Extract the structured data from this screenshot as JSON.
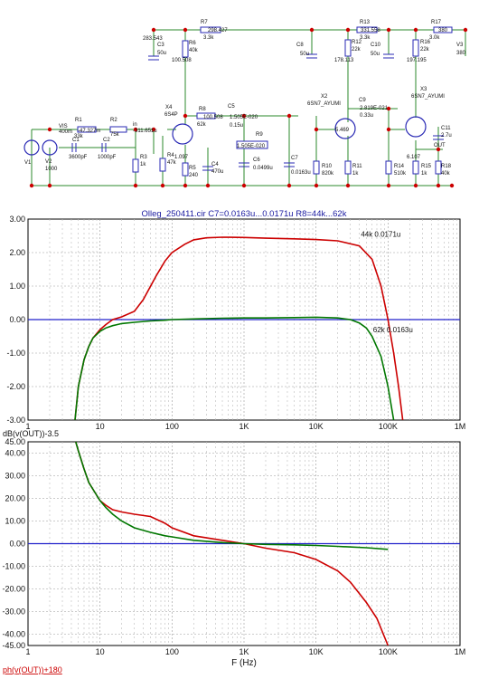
{
  "schematic": {
    "labels": [
      {
        "id": "r7",
        "t": "R7"
      },
      {
        "id": "r7v",
        "t": "298.427"
      },
      {
        "id": "r7k",
        "t": "3.3k"
      },
      {
        "id": "c3n",
        "t": "283.543"
      },
      {
        "id": "c3",
        "t": "C3"
      },
      {
        "id": "c3v",
        "t": "50u"
      },
      {
        "id": "r6",
        "t": "R6"
      },
      {
        "id": "r6v",
        "t": "40k"
      },
      {
        "id": "r6n",
        "t": "100.508"
      },
      {
        "id": "c8",
        "t": "C8"
      },
      {
        "id": "c8v",
        "t": "50u"
      },
      {
        "id": "r13",
        "t": "R13"
      },
      {
        "id": "r13v",
        "t": "331.558"
      },
      {
        "id": "r13k",
        "t": "3.3k"
      },
      {
        "id": "r12",
        "t": "R12"
      },
      {
        "id": "r12v",
        "t": "22k"
      },
      {
        "id": "r12n",
        "t": "178.113"
      },
      {
        "id": "c10",
        "t": "C10"
      },
      {
        "id": "c10v",
        "t": "50u"
      },
      {
        "id": "r17",
        "t": "R17"
      },
      {
        "id": "r17v",
        "t": "380"
      },
      {
        "id": "r17k",
        "t": "3.0k"
      },
      {
        "id": "r16",
        "t": "R16"
      },
      {
        "id": "r16v",
        "t": "22k"
      },
      {
        "id": "r16n",
        "t": "197.195"
      },
      {
        "id": "v3",
        "t": "V3"
      },
      {
        "id": "v3v",
        "t": "380"
      },
      {
        "id": "vis",
        "t": "VIS"
      },
      {
        "id": "r1",
        "t": "R1"
      },
      {
        "id": "r1v",
        "t": "400m"
      },
      {
        "id": "r1n",
        "t": "-47.327m"
      },
      {
        "id": "r1k",
        "t": "33k"
      },
      {
        "id": "r2",
        "t": "R2"
      },
      {
        "id": "r2v",
        "t": "75k"
      },
      {
        "id": "in",
        "t": "in"
      },
      {
        "id": "inv",
        "t": "-311.651u"
      },
      {
        "id": "c1",
        "t": "C1"
      },
      {
        "id": "c1v",
        "t": "3600pF"
      },
      {
        "id": "c2",
        "t": "C2"
      },
      {
        "id": "c2v",
        "t": "1000pF"
      },
      {
        "id": "r3",
        "t": "R3"
      },
      {
        "id": "r3v",
        "t": "1k"
      },
      {
        "id": "v1",
        "t": "V1"
      },
      {
        "id": "v2",
        "t": "V2"
      },
      {
        "id": "v2v",
        "t": "1000"
      },
      {
        "id": "x4",
        "t": "X4"
      },
      {
        "id": "x4v",
        "t": "6S4P"
      },
      {
        "id": "r8",
        "t": "R8"
      },
      {
        "id": "r8n",
        "t": "100.508"
      },
      {
        "id": "r8v",
        "t": "62k"
      },
      {
        "id": "c5",
        "t": "C5"
      },
      {
        "id": "c5n",
        "t": "1.505E-020"
      },
      {
        "id": "c5v",
        "t": "0.15u"
      },
      {
        "id": "r9",
        "t": "R9"
      },
      {
        "id": "r9n",
        "t": "1.505E-020"
      },
      {
        "id": "c6",
        "t": "C6"
      },
      {
        "id": "c6v",
        "t": "0.0499u"
      },
      {
        "id": "c7",
        "t": "C7"
      },
      {
        "id": "c7v",
        "t": "0.0163u"
      },
      {
        "id": "r4",
        "t": "R4"
      },
      {
        "id": "r4v",
        "t": "47k"
      },
      {
        "id": "x4n",
        "t": "1.097"
      },
      {
        "id": "r5",
        "t": "R5"
      },
      {
        "id": "r5v",
        "t": "240"
      },
      {
        "id": "c4",
        "t": "C4"
      },
      {
        "id": "c4v",
        "t": "470u"
      },
      {
        "id": "x2",
        "t": "X2"
      },
      {
        "id": "x2v",
        "t": "6SN7_AYUMI"
      },
      {
        "id": "c9",
        "t": "C9"
      },
      {
        "id": "c9n",
        "t": "2.819E-021"
      },
      {
        "id": "c9v",
        "t": "0.33u"
      },
      {
        "id": "x3",
        "t": "X3"
      },
      {
        "id": "x3v",
        "t": "6SN7_AYUMI"
      },
      {
        "id": "x2n",
        "t": "5.469"
      },
      {
        "id": "r10",
        "t": "R10"
      },
      {
        "id": "r10v",
        "t": "820k"
      },
      {
        "id": "r11",
        "t": "R11"
      },
      {
        "id": "r11v",
        "t": "1k"
      },
      {
        "id": "x3n",
        "t": "6.107"
      },
      {
        "id": "r14",
        "t": "R14"
      },
      {
        "id": "r14v",
        "t": "510k"
      },
      {
        "id": "r15",
        "t": "R15"
      },
      {
        "id": "r15v",
        "t": "1k"
      },
      {
        "id": "c11",
        "t": "C11"
      },
      {
        "id": "c11v",
        "t": "2.7u"
      },
      {
        "id": "out",
        "t": "OUT"
      },
      {
        "id": "r18",
        "t": "R18"
      },
      {
        "id": "r18v",
        "t": "40k"
      }
    ]
  },
  "chart_data": [
    {
      "type": "line",
      "title": "Olleg_250411.cir C7=0.0163u...0.0171u R8=44k...62k",
      "xlabel": "",
      "ylabel": "dB(v(OUT))-3.5",
      "xscale": "log",
      "xlim": [
        1,
        1000000
      ],
      "ylim": [
        -3.0,
        3.0
      ],
      "grid": true,
      "x_ticks": [
        "1",
        "10",
        "100",
        "1K",
        "10K",
        "100K",
        "1M"
      ],
      "y_ticks": [
        "3.00",
        "2.00",
        "1.00",
        "0.00",
        "-1.00",
        "-2.00",
        "-3.00"
      ],
      "annotations": [
        {
          "text": "44k 0.0171u",
          "x": 42000,
          "y": 2.55
        },
        {
          "text": "62k 0.0163u",
          "x": 62000,
          "y": -0.3
        }
      ],
      "series": [
        {
          "color": "#cc0000",
          "x": [
            4.5,
            5,
            6,
            7,
            8,
            10,
            12,
            15,
            20,
            30,
            40,
            60,
            80,
            100,
            150,
            200,
            300,
            500,
            1000,
            2000,
            5000,
            10000,
            20000,
            40000,
            60000,
            80000,
            100000,
            120000,
            140000,
            160000
          ],
          "y": [
            -3.0,
            -2.0,
            -1.2,
            -0.8,
            -0.55,
            -0.3,
            -0.15,
            0.0,
            0.08,
            0.25,
            0.6,
            1.3,
            1.75,
            2.0,
            2.25,
            2.38,
            2.44,
            2.46,
            2.45,
            2.43,
            2.41,
            2.39,
            2.35,
            2.2,
            1.8,
            1.0,
            0.0,
            -1.0,
            -2.0,
            -3.0
          ]
        },
        {
          "color": "#007700",
          "x": [
            4.5,
            5,
            6,
            7,
            8,
            10,
            12,
            15,
            20,
            30,
            50,
            80,
            100,
            200,
            500,
            1000,
            2000,
            5000,
            10000,
            20000,
            30000,
            40000,
            50000,
            60000,
            80000,
            100000,
            120000
          ],
          "y": [
            -3.0,
            -2.0,
            -1.2,
            -0.8,
            -0.55,
            -0.35,
            -0.25,
            -0.18,
            -0.12,
            -0.08,
            -0.04,
            -0.02,
            0.0,
            0.02,
            0.04,
            0.05,
            0.05,
            0.06,
            0.07,
            0.05,
            0.0,
            -0.1,
            -0.25,
            -0.5,
            -1.1,
            -2.0,
            -3.0
          ]
        }
      ]
    },
    {
      "type": "line",
      "title": "",
      "xlabel": "F (Hz)",
      "ylabel": "ph(v(OUT))+180",
      "xscale": "log",
      "xlim": [
        1,
        1000000
      ],
      "ylim": [
        -45.0,
        45.0
      ],
      "grid": true,
      "x_ticks": [
        "1",
        "10",
        "100",
        "1K",
        "10K",
        "100K",
        "1M"
      ],
      "y_ticks": [
        "45.00",
        "40.00",
        "30.00",
        "20.00",
        "10.00",
        "0.00",
        "-10.00",
        "-20.00",
        "-30.00",
        "-40.00",
        "-45.00"
      ],
      "series": [
        {
          "color": "#cc0000",
          "x": [
            4.6,
            5,
            6,
            7,
            8,
            10,
            12,
            15,
            20,
            30,
            50,
            80,
            100,
            200,
            500,
            1000,
            2000,
            5000,
            10000,
            20000,
            30000,
            50000,
            70000,
            100000
          ],
          "y": [
            45,
            41,
            33,
            27,
            24,
            19,
            17,
            15,
            14,
            13,
            12,
            9,
            7,
            3.5,
            1.5,
            0,
            -2,
            -4,
            -7,
            -12,
            -17,
            -26,
            -33,
            -45
          ]
        },
        {
          "color": "#007700",
          "x": [
            4.6,
            5,
            6,
            7,
            8,
            10,
            12,
            15,
            20,
            30,
            50,
            80,
            100,
            200,
            500,
            1000,
            2000,
            5000,
            10000,
            20000,
            50000,
            100000
          ],
          "y": [
            45,
            41,
            33,
            27,
            24,
            19,
            16,
            13,
            10,
            7,
            5,
            3.5,
            3,
            1.5,
            0.5,
            0,
            -0.3,
            -0.5,
            -0.8,
            -1.2,
            -1.8,
            -2.5
          ]
        }
      ]
    }
  ]
}
